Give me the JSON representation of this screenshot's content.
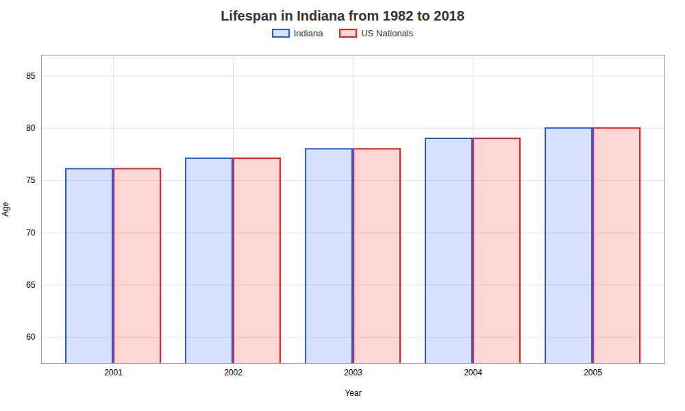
{
  "chart_data": {
    "type": "bar",
    "title": "Lifespan in Indiana from 1982 to 2018",
    "xlabel": "Year",
    "ylabel": "Age",
    "categories": [
      "2001",
      "2002",
      "2003",
      "2004",
      "2005"
    ],
    "series": [
      {
        "name": "Indiana",
        "color": "#1a5aff",
        "values": [
          76.1,
          77.1,
          78.0,
          79.0,
          80.0
        ]
      },
      {
        "name": "US Nationals",
        "color": "#ff1a1a",
        "values": [
          76.1,
          77.1,
          78.0,
          79.0,
          80.0
        ]
      }
    ],
    "ylim": [
      57.5,
      87
    ],
    "yticks": [
      60,
      65,
      70,
      75,
      80,
      85
    ],
    "grid": true,
    "legend": "top"
  }
}
